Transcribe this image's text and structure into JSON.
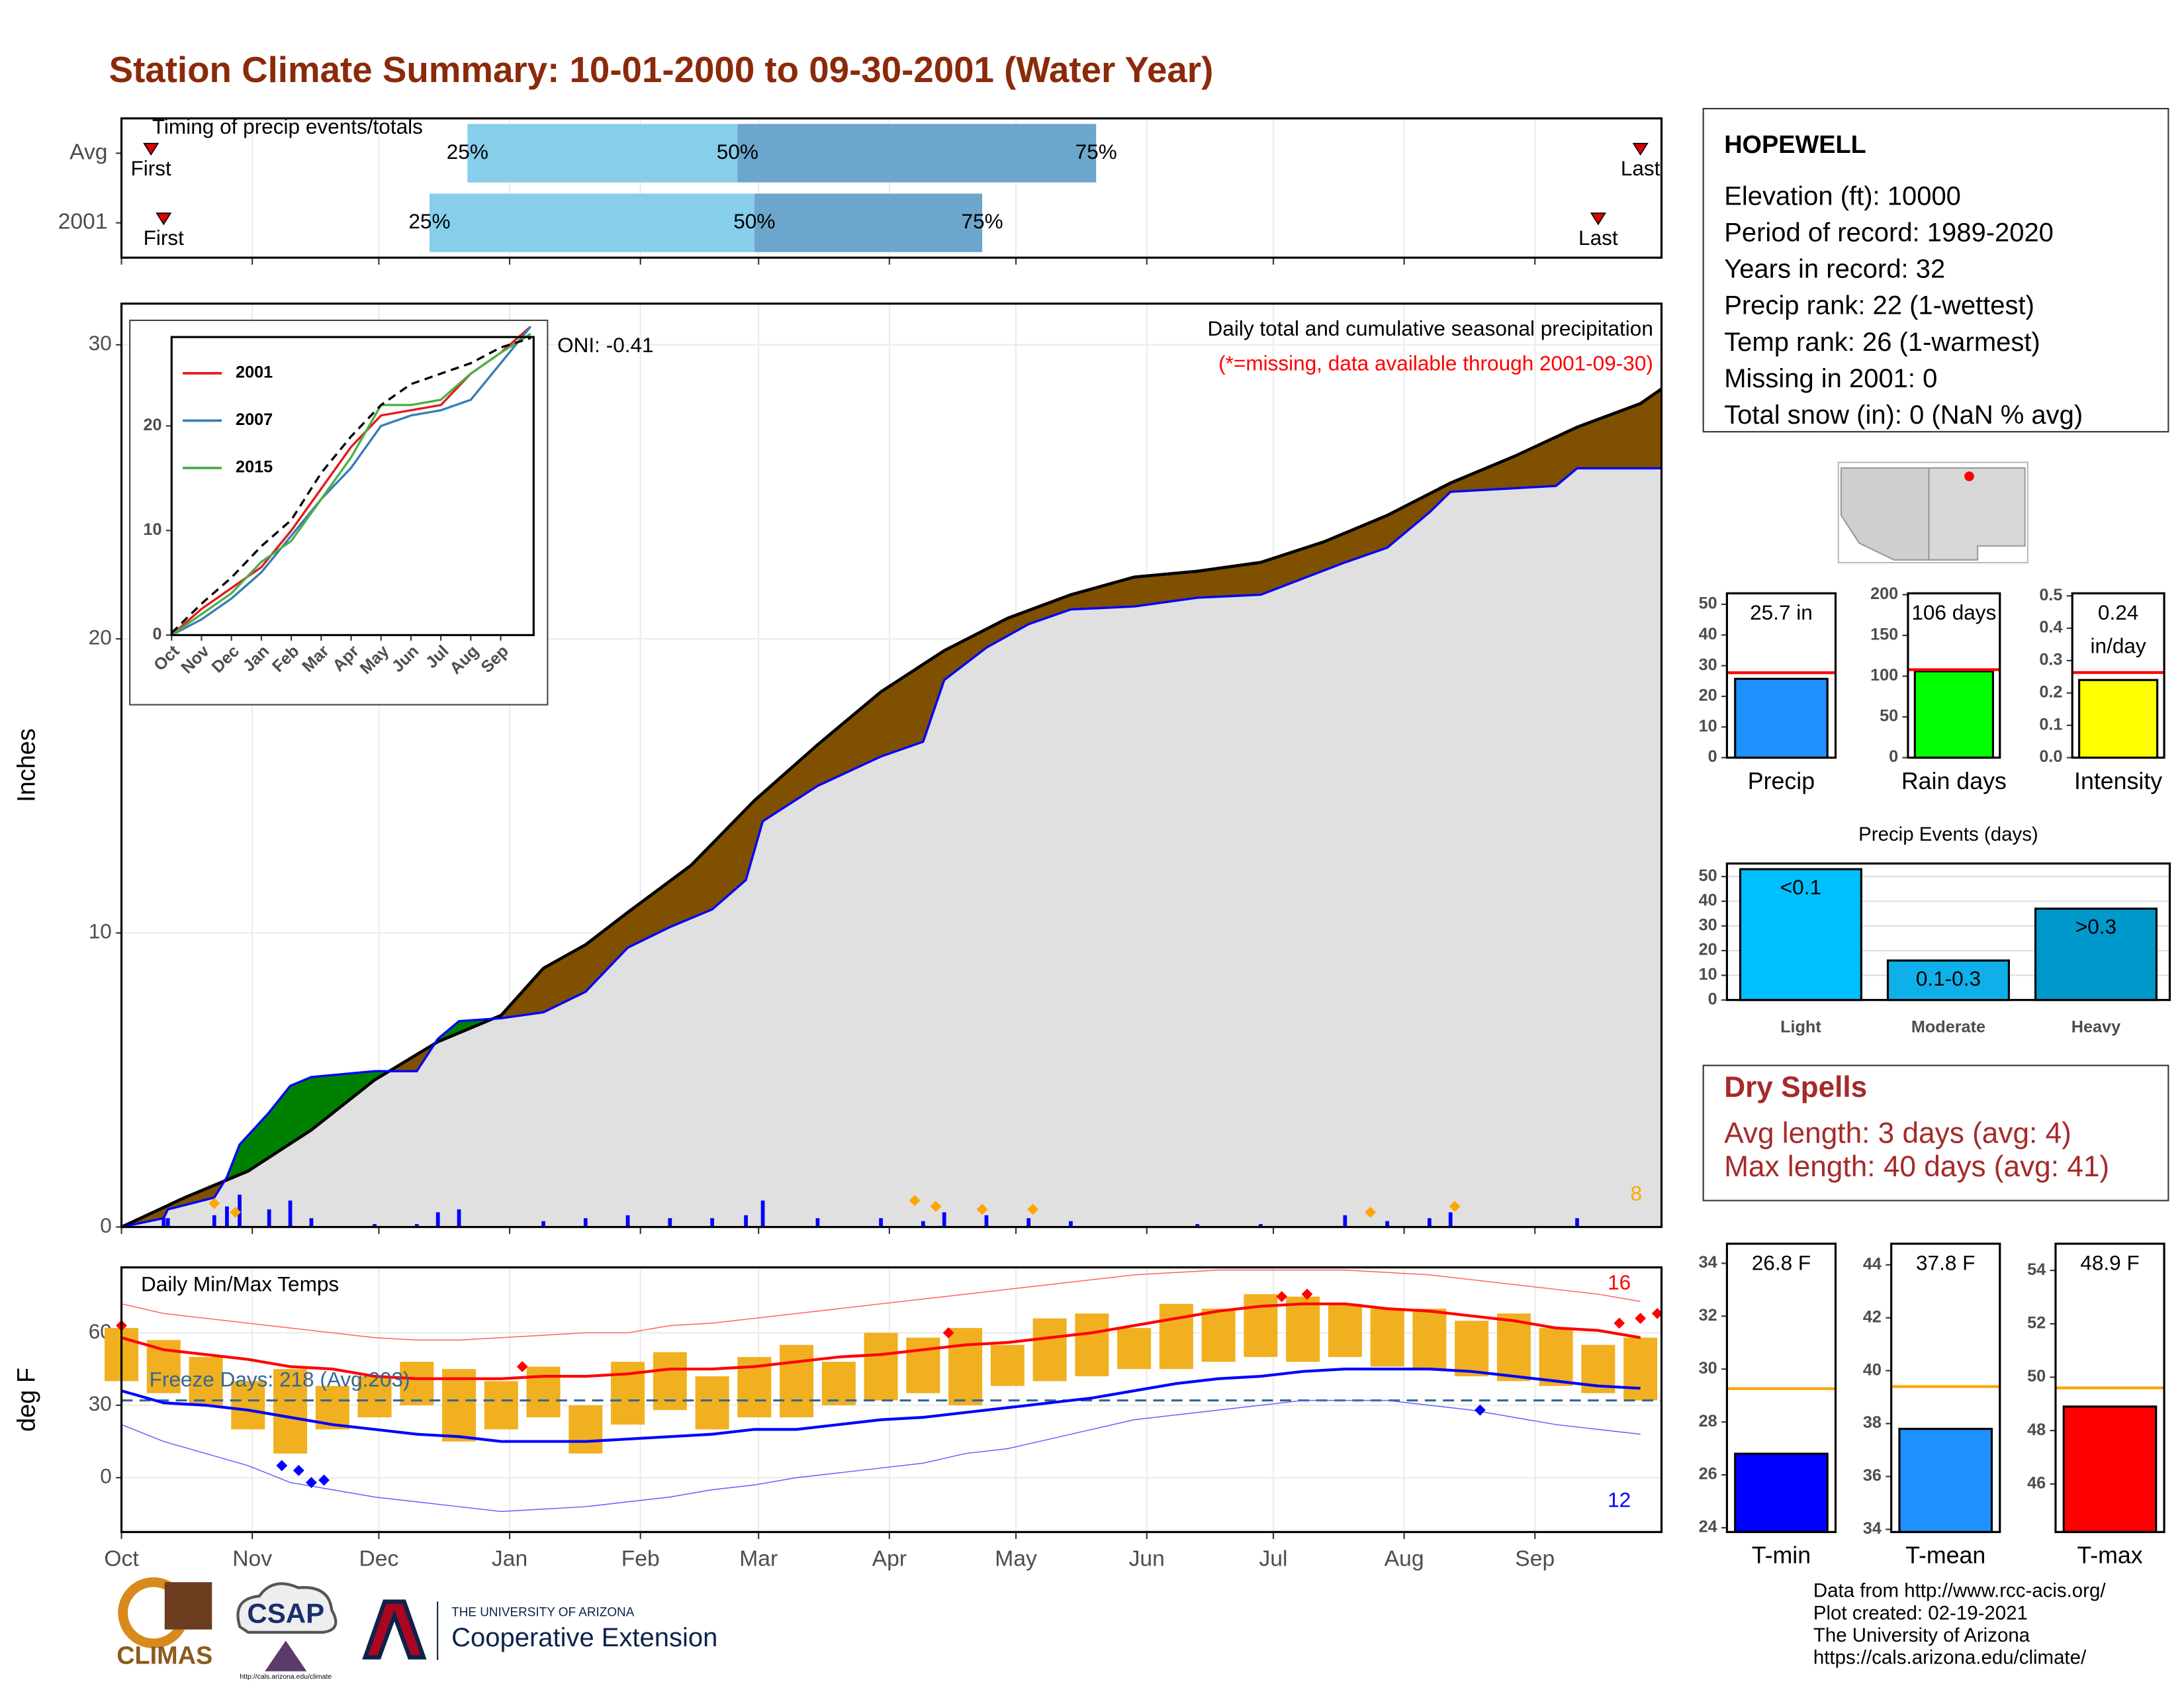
{
  "title": "Station Climate Summary: 10-01-2000 to 09-30-2001 (Water Year)",
  "station": {
    "name": "HOPEWELL",
    "lines": [
      "Elevation (ft): 10000",
      "Period of record: 1989-2020",
      "Years in record: 32",
      "Precip rank: 22 (1-wettest)",
      "Temp rank: 26 (1-warmest)",
      "Missing in 2001: 0",
      "Total snow (in): 0 (NaN % avg)"
    ]
  },
  "dry_spells": {
    "title": "Dry Spells",
    "lines": [
      "Avg length: 3 days (avg: 4)",
      "Max length: 40 days (avg: 41)"
    ]
  },
  "footer": [
    "Data from http://www.rcc-acis.org/",
    "Plot created: 02-19-2021",
    "The University of Arizona",
    "https://cals.arizona.edu/climate/"
  ],
  "logos": {
    "climas": "CLIMAS",
    "csap": "CSAP",
    "csap_url": "http://cals.arizona.edu/climate",
    "ua": "THE UNIVERSITY OF ARIZONA",
    "extension": "Cooperative Extension"
  },
  "chart_data": [
    {
      "type": "timing",
      "title": "Timing of precip events/totals",
      "markers": [
        "First",
        "25%",
        "50%",
        "75%",
        "Last"
      ],
      "series": [
        {
          "name": "Avg",
          "values": [
            7,
            82,
            146,
            231,
            360
          ]
        },
        {
          "name": "2001",
          "values": [
            10,
            73,
            150,
            204,
            350
          ]
        }
      ],
      "colors": [
        "#87ceeb",
        "#6ca6cd"
      ],
      "marker_color": "#dd0000",
      "xlim": [
        0,
        365
      ],
      "xticks": [
        0,
        31,
        61,
        92,
        123,
        151,
        182,
        212,
        243,
        273,
        304,
        335
      ]
    },
    {
      "type": "area",
      "title": "Daily total and cumulative seasonal precipitation",
      "subtitle": "(*=missing, data available through 2001-09-30)",
      "annotation": "ONI: -0.41",
      "ylabel": "Inches",
      "series": [
        {
          "color": "#000000",
          "x": [
            0,
            15,
            30,
            45,
            60,
            75,
            90,
            100,
            110,
            120,
            135,
            150,
            165,
            180,
            195,
            210,
            225,
            240,
            255,
            270,
            285,
            300,
            315,
            330,
            345,
            360,
            365
          ],
          "values": [
            0,
            1.0,
            1.9,
            3.3,
            5.0,
            6.3,
            7.2,
            8.8,
            9.6,
            10.7,
            12.3,
            14.5,
            16.4,
            18.2,
            19.6,
            20.7,
            21.5,
            22.1,
            22.3,
            22.6,
            23.3,
            24.2,
            25.3,
            26.2,
            27.2,
            28.0,
            28.5
          ]
        },
        {
          "color": "#0000ff",
          "x": [
            0,
            10,
            11,
            22,
            25,
            28,
            35,
            40,
            45,
            60,
            70,
            75,
            80,
            90,
            100,
            110,
            120,
            130,
            140,
            148,
            152,
            165,
            180,
            190,
            195,
            205,
            215,
            225,
            240,
            255,
            270,
            290,
            300,
            310,
            315,
            340,
            345,
            365
          ],
          "values": [
            0,
            0.3,
            0.6,
            1.0,
            1.7,
            2.8,
            3.9,
            4.8,
            5.1,
            5.3,
            5.3,
            6.4,
            7.0,
            7.1,
            7.3,
            8.0,
            9.5,
            10.2,
            10.8,
            11.8,
            13.8,
            15.0,
            16.0,
            16.5,
            18.6,
            19.7,
            20.5,
            21.0,
            21.1,
            21.4,
            21.5,
            22.6,
            23.1,
            24.3,
            25.0,
            25.2,
            25.8,
            25.8
          ]
        }
      ],
      "fills": {
        "above": "#008000",
        "below": "#7f5000",
        "common": "#e0e0e0"
      },
      "bars": {
        "color": "#0000ff",
        "x": [
          10,
          11,
          22,
          25,
          28,
          35,
          40,
          45,
          60,
          70,
          75,
          80,
          100,
          110,
          120,
          130,
          140,
          148,
          152,
          165,
          180,
          190,
          195,
          205,
          215,
          225,
          255,
          270,
          290,
          300,
          310,
          315,
          345
        ],
        "values": [
          0.3,
          0.3,
          0.4,
          0.7,
          1.1,
          0.6,
          0.9,
          0.3,
          0.1,
          0.1,
          0.5,
          0.6,
          0.2,
          0.3,
          0.4,
          0.3,
          0.3,
          0.4,
          0.9,
          0.3,
          0.3,
          0.2,
          0.5,
          0.4,
          0.3,
          0.2,
          0.1,
          0.1,
          0.4,
          0.2,
          0.3,
          0.5,
          0.3
        ]
      },
      "events": {
        "color": "#ffa500",
        "x": [
          22,
          27,
          188,
          193,
          204,
          216,
          296,
          316
        ],
        "values": [
          0.8,
          0.5,
          0.9,
          0.7,
          0.6,
          0.6,
          0.5,
          0.7
        ],
        "count": 8
      },
      "xlim": [
        0,
        365
      ],
      "xticks": [
        0,
        31,
        61,
        92,
        123,
        151,
        182,
        212,
        243,
        273,
        304,
        335
      ],
      "ylim": [
        0,
        31.4
      ],
      "yticks": [
        0,
        10,
        20,
        30
      ],
      "grid": true
    },
    {
      "type": "line",
      "x": [
        0,
        1,
        2,
        3,
        4,
        5,
        6,
        7,
        8,
        9,
        10,
        11,
        12
      ],
      "series": [
        {
          "name": "2001",
          "color": "#e41a1c",
          "values": [
            0,
            2.5,
            4.5,
            6.5,
            10,
            14,
            18,
            21,
            21.5,
            22,
            25,
            27,
            29.5
          ]
        },
        {
          "name": "2007",
          "color": "#377eb8",
          "values": [
            0,
            1.5,
            3.5,
            6,
            9.5,
            13,
            16,
            20,
            21,
            21.5,
            22.5,
            26,
            29.5
          ]
        },
        {
          "name": "2015",
          "color": "#4daf4a",
          "values": [
            0,
            2,
            4,
            7,
            9,
            13,
            17,
            22,
            22,
            22.5,
            25,
            27,
            28.8
          ]
        },
        {
          "color": "#000000",
          "dashed": true,
          "values": [
            0.2,
            3,
            5.5,
            8.5,
            11,
            15.5,
            19,
            22,
            24,
            25,
            26,
            27.5,
            28.4
          ]
        }
      ],
      "legend": "top-left",
      "xlim": [
        0,
        12.1
      ],
      "xticks": [
        {
          "value": 0,
          "label": "Oct"
        },
        {
          "value": 1,
          "label": "Nov"
        },
        {
          "value": 2,
          "label": "Dec"
        },
        {
          "value": 3,
          "label": "Jan"
        },
        {
          "value": 4,
          "label": "Feb"
        },
        {
          "value": 5,
          "label": "Mar"
        },
        {
          "value": 6,
          "label": "Apr"
        },
        {
          "value": 7,
          "label": "May"
        },
        {
          "value": 8,
          "label": "Jun"
        },
        {
          "value": 9,
          "label": "Jul"
        },
        {
          "value": 10,
          "label": "Aug"
        },
        {
          "value": 11,
          "label": "Sep"
        }
      ],
      "ylim": [
        0,
        28.5
      ],
      "yticks": [
        0,
        10,
        20
      ]
    },
    {
      "type": "bar",
      "categories": [
        "Precip"
      ],
      "values": [
        25.7
      ],
      "value_labels": [
        "25.7 in"
      ],
      "color": "#1e90ff",
      "avg": 27.7,
      "avg_color": "#ff0000",
      "ylim": [
        0,
        53.6
      ],
      "yticks": [
        0,
        10,
        20,
        30,
        40,
        50
      ]
    },
    {
      "type": "bar",
      "categories": [
        "Rain days"
      ],
      "values": [
        106
      ],
      "value_labels": [
        "106 days"
      ],
      "color": "#00ff00",
      "avg": 108,
      "avg_color": "#ff0000",
      "ylim": [
        0,
        201.7
      ],
      "yticks": [
        0,
        50,
        100,
        150,
        200
      ]
    },
    {
      "type": "bar",
      "categories": [
        "Intensity"
      ],
      "values": [
        0.24
      ],
      "value_labels": [
        [
          "0.24",
          "in/day"
        ]
      ],
      "color": "#ffff00",
      "avg": 0.263,
      "avg_color": "#ff0000",
      "ylim": [
        0,
        0.508
      ],
      "yticks": [
        {
          "value": 0,
          "label": "0.0"
        },
        0.1,
        0.2,
        0.3,
        0.4,
        0.5
      ]
    },
    {
      "type": "bar",
      "title": "Precip Events (days)",
      "categories": [
        "Light",
        "Moderate",
        "Heavy"
      ],
      "values": [
        53,
        16,
        37
      ],
      "bin_labels": [
        "<0.1",
        "0.1-0.3",
        ">0.3"
      ],
      "colors": [
        "#00bfff",
        "#0fb0ea",
        "#0099cc"
      ],
      "ylim": [
        0,
        55.3
      ],
      "yticks": [
        0,
        10,
        20,
        30,
        40,
        50
      ],
      "grid": true
    },
    {
      "type": "bar",
      "categories": [
        "T-min"
      ],
      "values": [
        26.8
      ],
      "value_labels": [
        "26.8 F"
      ],
      "color": "#0000ff",
      "avg": 29.26,
      "avg_color": "#ffa500",
      "ylim": [
        23.84,
        34.74
      ],
      "yticks": [
        24,
        26,
        28,
        30,
        32,
        34
      ]
    },
    {
      "type": "bar",
      "categories": [
        "T-mean"
      ],
      "values": [
        37.8
      ],
      "value_labels": [
        "37.8 F"
      ],
      "color": "#1e90ff",
      "avg": 39.4,
      "avg_color": "#ffa500",
      "ylim": [
        33.9,
        44.8
      ],
      "yticks": [
        34,
        36,
        38,
        40,
        42,
        44
      ]
    },
    {
      "type": "bar",
      "categories": [
        "T-max"
      ],
      "values": [
        48.9
      ],
      "value_labels": [
        "48.9 F"
      ],
      "color": "#ff0000",
      "avg": 49.6,
      "avg_color": "#ffa500",
      "ylim": [
        44.2,
        55.0
      ],
      "yticks": [
        46,
        48,
        50,
        52,
        54
      ]
    },
    {
      "type": "temps",
      "title": "Daily Min/Max Temps",
      "annotation": "Freeze Days: 218 (Avg:203)",
      "ylabel": "deg F",
      "x": [
        0,
        10,
        20,
        30,
        40,
        50,
        60,
        70,
        80,
        90,
        100,
        110,
        120,
        130,
        140,
        150,
        160,
        170,
        180,
        190,
        200,
        210,
        220,
        230,
        240,
        250,
        260,
        270,
        280,
        290,
        300,
        310,
        320,
        330,
        340,
        350,
        360
      ],
      "range": {
        "color": "#f0b020",
        "high": [
          62,
          57,
          50,
          40,
          45,
          38,
          42,
          48,
          45,
          40,
          46,
          30,
          48,
          52,
          42,
          50,
          55,
          48,
          60,
          58,
          62,
          55,
          66,
          68,
          62,
          72,
          70,
          76,
          75,
          72,
          70,
          70,
          65,
          68,
          62,
          55,
          58
        ],
        "low": [
          40,
          35,
          30,
          20,
          10,
          20,
          25,
          30,
          15,
          20,
          25,
          10,
          22,
          28,
          20,
          25,
          25,
          30,
          32,
          35,
          30,
          38,
          40,
          42,
          45,
          45,
          48,
          50,
          48,
          50,
          46,
          45,
          42,
          40,
          38,
          35,
          32
        ]
      },
      "series": [
        {
          "color": "#ff6060",
          "thin": true,
          "values": [
            72,
            68,
            66,
            64,
            62,
            60,
            58,
            57,
            57,
            58,
            59,
            60,
            60,
            63,
            64,
            66,
            68,
            70,
            72,
            74,
            76,
            78,
            80,
            82,
            84,
            85,
            86,
            86,
            86,
            86,
            85,
            84,
            82,
            80,
            78,
            76,
            73
          ]
        },
        {
          "color": "#6060ff",
          "thin": true,
          "values": [
            22,
            15,
            10,
            5,
            -2,
            -5,
            -8,
            -10,
            -12,
            -14,
            -13,
            -12,
            -10,
            -8,
            -5,
            -3,
            0,
            2,
            4,
            6,
            10,
            12,
            16,
            20,
            24,
            26,
            28,
            30,
            32,
            32,
            32,
            30,
            28,
            25,
            22,
            20,
            18
          ]
        },
        {
          "color": "#ff0000",
          "values": [
            58,
            53,
            51,
            49,
            46,
            45,
            42,
            41,
            41,
            41,
            42,
            42,
            43,
            45,
            45,
            46,
            48,
            50,
            51,
            53,
            55,
            56,
            58,
            60,
            63,
            66,
            69,
            71,
            72,
            72,
            70,
            69,
            67,
            65,
            62,
            61,
            58
          ]
        },
        {
          "color": "#0000ff",
          "values": [
            36,
            31,
            30,
            28,
            25,
            22,
            20,
            18,
            17,
            15,
            15,
            15,
            16,
            17,
            18,
            20,
            20,
            22,
            24,
            25,
            27,
            29,
            31,
            33,
            36,
            39,
            41,
            42,
            44,
            45,
            45,
            45,
            44,
            42,
            40,
            38,
            37
          ]
        }
      ],
      "points": [
        {
          "color": "#ff0000",
          "x": [
            0,
            95,
            196,
            275,
            281,
            355,
            360,
            364
          ],
          "values": [
            63,
            46,
            60,
            75,
            76,
            64,
            66,
            68
          ],
          "count": 16
        },
        {
          "color": "#0000ff",
          "x": [
            38,
            42,
            45,
            48,
            322
          ],
          "values": [
            5,
            3,
            -2,
            -1,
            28
          ],
          "count": 12
        }
      ],
      "freeze": 32,
      "freeze_color": "#336699",
      "xlim": [
        0,
        365
      ],
      "xticks": [
        {
          "value": 0,
          "label": "Oct"
        },
        {
          "value": 31,
          "label": "Nov"
        },
        {
          "value": 61,
          "label": "Dec"
        },
        {
          "value": 92,
          "label": "Jan"
        },
        {
          "value": 123,
          "label": "Feb"
        },
        {
          "value": 151,
          "label": "Mar"
        },
        {
          "value": 182,
          "label": "Apr"
        },
        {
          "value": 212,
          "label": "May"
        },
        {
          "value": 243,
          "label": "Jun"
        },
        {
          "value": 273,
          "label": "Jul"
        },
        {
          "value": 304,
          "label": "Aug"
        },
        {
          "value": 335,
          "label": "Sep"
        }
      ],
      "ylim": [
        -22.5,
        87.1
      ],
      "yticks": [
        0,
        30,
        60
      ],
      "grid": true
    }
  ]
}
